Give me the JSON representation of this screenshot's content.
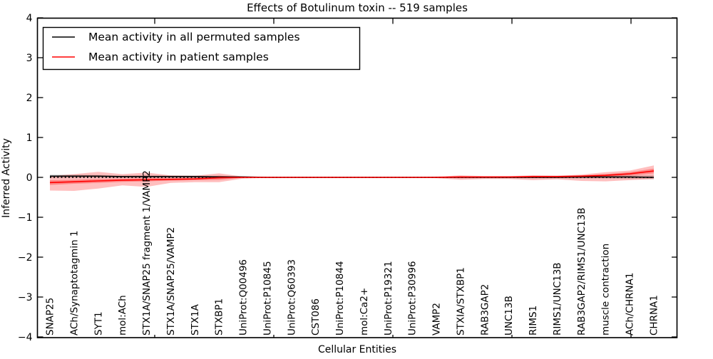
{
  "title": "Effects of Botulinum toxin -- 519 samples",
  "legend": {
    "entries": [
      {
        "label": "Mean activity in all permuted samples",
        "color": "#000000"
      },
      {
        "label": "Mean activity in patient samples",
        "color": "#ff0000"
      }
    ]
  },
  "colors": {
    "permuted_line": "#000000",
    "permuted_band": "rgba(0,0,0,0.15)",
    "patient_line": "#ff0000",
    "patient_band_outer": "rgba(255,0,0,0.25)",
    "patient_band_inner": "rgba(255,0,0,0.30)",
    "zero_line": "#000000",
    "axis": "#000000"
  },
  "chart_data": {
    "type": "line",
    "title": "Effects of Botulinum toxin -- 519 samples",
    "xlabel": "Cellular Entities",
    "ylabel": "Inferred Activity",
    "ylim": [
      -4,
      4
    ],
    "yticks": [
      4,
      3,
      2,
      1,
      0,
      -1,
      -2,
      -3,
      -4
    ],
    "grid": false,
    "legend_position": "upper left",
    "zero_line": {
      "y": 0,
      "style": "dotted",
      "color": "#000000"
    },
    "categories": [
      "SNAP25",
      "ACh/Synaptotagmin 1",
      "SYT1",
      "mol:ACh",
      "STX1A/SNAP25 fragment 1/VAMP2",
      "STX1A/SNAP25/VAMP2",
      "STX1A",
      "STXBP1",
      "UniProt:Q00496",
      "UniProt:P10845",
      "UniProt:Q60393",
      "CST086",
      "UniProt:P10844",
      "mol:Ca2+",
      "UniProt:P19321",
      "UniProt:P30996",
      "VAMP2",
      "STXIA/STXBP1",
      "RAB3GAP2",
      "UNC13B",
      "RIMS1",
      "RIMS1/UNC13B",
      "RAB3GAP2/RIMS1/UNC13B",
      "muscle contraction",
      "ACh/CHRNA1",
      "CHRNA1"
    ],
    "series": [
      {
        "name": "Mean activity in all permuted samples",
        "color": "#000000",
        "band_color": "rgba(0,0,0,0.15)",
        "values": [
          0.03,
          0.03,
          0.03,
          0.02,
          0.02,
          0.02,
          0.02,
          0.01,
          0.01,
          0.0,
          0.0,
          0.0,
          0.0,
          0.0,
          0.0,
          0.0,
          0.0,
          0.0,
          0.0,
          0.0,
          0.0,
          0.0,
          0.01,
          0.01,
          0.01,
          0.0
        ],
        "band_upper": [
          0.07,
          0.07,
          0.06,
          0.05,
          0.06,
          0.05,
          0.05,
          0.04,
          0.02,
          0.01,
          0.01,
          0.01,
          0.01,
          0.01,
          0.01,
          0.01,
          0.01,
          0.02,
          0.02,
          0.02,
          0.02,
          0.02,
          0.03,
          0.05,
          0.06,
          0.06
        ],
        "band_lower": [
          -0.02,
          -0.02,
          -0.01,
          -0.01,
          -0.01,
          -0.01,
          -0.01,
          -0.02,
          -0.01,
          -0.01,
          -0.01,
          -0.01,
          -0.01,
          -0.01,
          -0.01,
          -0.01,
          -0.01,
          -0.02,
          -0.02,
          -0.02,
          -0.02,
          -0.02,
          -0.03,
          -0.03,
          -0.04,
          -0.05
        ]
      },
      {
        "name": "Mean activity in patient samples",
        "color": "#ff0000",
        "band_color": "rgba(255,0,0,0.25)",
        "values": [
          -0.13,
          -0.11,
          -0.09,
          -0.07,
          -0.06,
          -0.05,
          -0.04,
          -0.01,
          0.0,
          0.0,
          0.0,
          0.0,
          0.0,
          0.0,
          0.0,
          0.0,
          0.0,
          0.01,
          0.01,
          0.01,
          0.02,
          0.02,
          0.03,
          0.05,
          0.09,
          0.16
        ],
        "band_upper": [
          0.03,
          0.08,
          0.14,
          0.08,
          0.12,
          0.05,
          0.04,
          0.1,
          0.02,
          0.01,
          0.01,
          0.01,
          0.01,
          0.01,
          0.01,
          0.01,
          0.02,
          0.05,
          0.03,
          0.03,
          0.05,
          0.04,
          0.07,
          0.13,
          0.17,
          0.3
        ],
        "band_lower": [
          -0.33,
          -0.34,
          -0.28,
          -0.2,
          -0.24,
          -0.14,
          -0.12,
          -0.12,
          -0.03,
          -0.01,
          -0.01,
          -0.01,
          -0.01,
          -0.01,
          -0.01,
          -0.01,
          -0.02,
          -0.06,
          -0.04,
          -0.04,
          -0.07,
          -0.05,
          -0.09,
          -0.1,
          -0.07,
          -0.04
        ],
        "inner_spread": [
          0.06,
          0.05,
          0.05,
          0.04,
          0.04,
          0.03,
          0.03,
          0.05,
          0.01,
          0.005,
          0.005,
          0.005,
          0.005,
          0.005,
          0.005,
          0.005,
          0.01,
          0.02,
          0.01,
          0.01,
          0.02,
          0.02,
          0.02,
          0.03,
          0.04,
          0.06
        ]
      }
    ]
  }
}
